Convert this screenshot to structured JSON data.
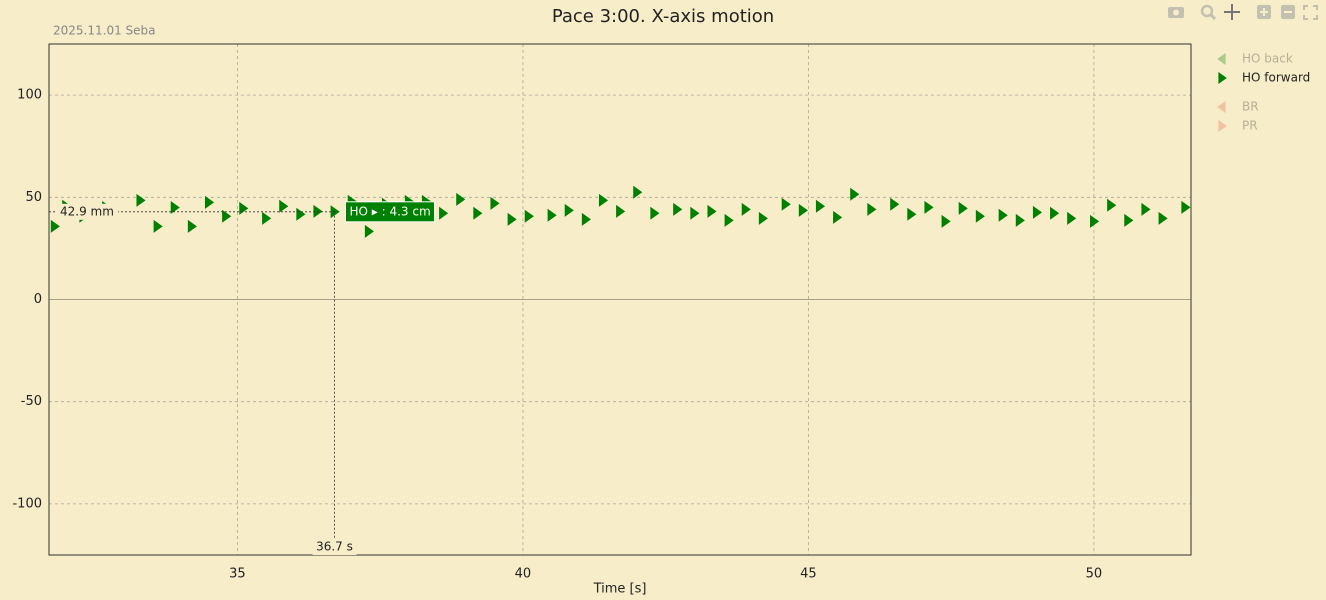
{
  "chart_data": {
    "type": "scatter",
    "title": "Pace 3:00. X-axis motion",
    "subtitle": "2025.11.01 Seba",
    "x_label": "Time [s]",
    "xlim": [
      31.7,
      51.7
    ],
    "xticks": [
      35,
      40,
      45,
      50
    ],
    "ylim": [
      -125,
      125
    ],
    "yticks": [
      -100,
      -50,
      0,
      50,
      100
    ],
    "grid": true,
    "series": [
      {
        "name": "HO back",
        "color": "#008000",
        "marker": "triangle-left",
        "visible": false,
        "x": [],
        "values": []
      },
      {
        "name": "HO forward",
        "color": "#008000",
        "marker": "triangle-right",
        "visible": true,
        "x": [
          31.8,
          32.0,
          32.3,
          32.7,
          33.3,
          33.6,
          33.9,
          34.2,
          34.5,
          34.8,
          35.1,
          35.5,
          35.8,
          36.1,
          36.4,
          36.7,
          37.0,
          37.3,
          37.6,
          38.0,
          38.3,
          38.6,
          38.9,
          39.2,
          39.5,
          39.8,
          40.1,
          40.5,
          40.8,
          41.1,
          41.4,
          41.7,
          42.0,
          42.3,
          42.7,
          43.0,
          43.3,
          43.6,
          43.9,
          44.2,
          44.6,
          44.9,
          45.2,
          45.5,
          45.8,
          46.1,
          46.5,
          46.8,
          47.1,
          47.4,
          47.7,
          48.0,
          48.4,
          48.7,
          49.0,
          49.3,
          49.6,
          50.0,
          50.3,
          50.6,
          50.9,
          51.2,
          51.6
        ],
        "values": [
          35.8,
          45.6,
          40.7,
          45.0,
          48.5,
          35.8,
          45.0,
          35.8,
          47.5,
          40.7,
          44.6,
          39.7,
          45.6,
          41.7,
          43.1,
          42.9,
          48.0,
          33.3,
          46.6,
          48.0,
          48.0,
          42.2,
          49.0,
          42.2,
          47.0,
          39.2,
          40.7,
          41.2,
          43.6,
          39.2,
          48.5,
          43.1,
          52.5,
          42.2,
          44.1,
          42.2,
          43.1,
          38.7,
          44.1,
          39.7,
          46.6,
          43.6,
          45.6,
          40.2,
          51.5,
          44.1,
          46.6,
          41.7,
          45.1,
          38.2,
          44.6,
          40.7,
          41.2,
          38.7,
          42.6,
          42.2,
          39.7,
          38.2,
          46.1,
          38.7,
          44.1,
          39.7,
          45.1
        ]
      },
      {
        "name": "BR",
        "color": "#e8624a",
        "marker": "triangle-left",
        "visible": false,
        "x": [],
        "values": []
      },
      {
        "name": "PR",
        "color": "#e8624a",
        "marker": "triangle-right",
        "visible": false,
        "x": [],
        "values": []
      }
    ],
    "hover": {
      "x": 36.7,
      "y": 42.9,
      "x_label": "36.7 s",
      "y_label": "42.9 mm",
      "text": "HO ▸ : 4.3 cm"
    }
  }
}
